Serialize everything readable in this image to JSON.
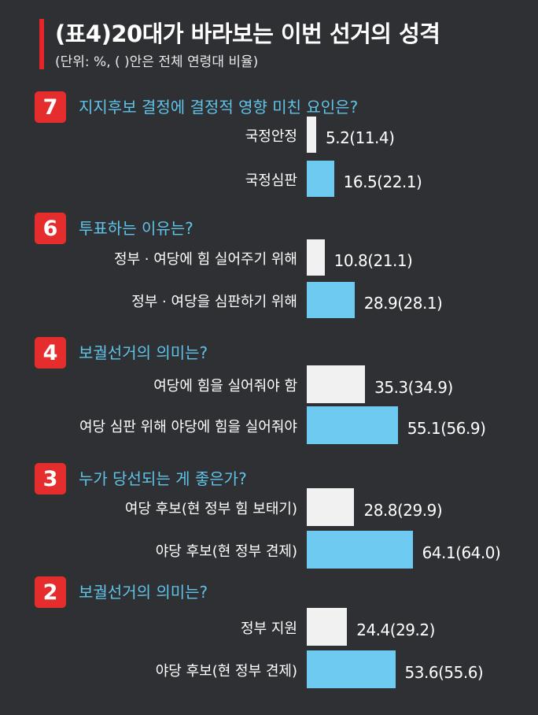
{
  "header": {
    "title": "(표4)20대가 바라보는 이번 선거의 성격",
    "subtitle": "(단위: %, (      )안은 전체 연령대 비율)"
  },
  "colors": {
    "accent": "#e8242b",
    "question": "#5fc4e8",
    "bar_gray": "#f1f1f1",
    "bar_blue": "#6fcaf1"
  },
  "chart_data": {
    "type": "bar",
    "orientation": "horizontal",
    "groups": [
      {
        "number": "7",
        "question": "지지후보 결정에 결정적 영향 미친 요인은?",
        "items": [
          {
            "label": "국정안정",
            "value": 5.2,
            "overall": 11.4,
            "value_text": "5.2(11.4)",
            "color": "gray"
          },
          {
            "label": "국정심판",
            "value": 16.5,
            "overall": 22.1,
            "value_text": "16.5(22.1)",
            "color": "blue"
          }
        ]
      },
      {
        "number": "6",
        "question": "투표하는 이유는?",
        "items": [
          {
            "label": "정부 · 여당에 힘 실어주기 위해",
            "value": 10.8,
            "overall": 21.1,
            "value_text": "10.8(21.1)",
            "color": "gray"
          },
          {
            "label": "정부 · 여당을 심판하기 위해",
            "value": 28.9,
            "overall": 28.1,
            "value_text": "28.9(28.1)",
            "color": "blue"
          }
        ]
      },
      {
        "number": "4",
        "question": "보궐선거의 의미는?",
        "items": [
          {
            "label": "여당에 힘을 실어줘야 함",
            "value": 35.3,
            "overall": 34.9,
            "value_text": "35.3(34.9)",
            "color": "gray"
          },
          {
            "label": "여당 심판 위해 야당에 힘을 실어줘야",
            "value": 55.1,
            "overall": 56.9,
            "value_text": "55.1(56.9)",
            "color": "blue"
          }
        ]
      },
      {
        "number": "3",
        "question": "누가 당선되는 게 좋은가?",
        "items": [
          {
            "label": "여당 후보(현 정부 힘 보태기)",
            "value": 28.8,
            "overall": 29.9,
            "value_text": "28.8(29.9)",
            "color": "gray"
          },
          {
            "label": "야당 후보(현 정부 견제)",
            "value": 64.1,
            "overall": 64.0,
            "value_text": "64.1(64.0)",
            "color": "blue"
          }
        ]
      },
      {
        "number": "2",
        "question": "보궐선거의 의미는?",
        "items": [
          {
            "label": "정부 지원",
            "value": 24.4,
            "overall": 29.2,
            "value_text": "24.4(29.2)",
            "color": "gray"
          },
          {
            "label": "야당 후보(현 정부 견제)",
            "value": 53.6,
            "overall": 55.6,
            "value_text": "53.6(55.6)",
            "color": "blue"
          }
        ]
      }
    ]
  }
}
